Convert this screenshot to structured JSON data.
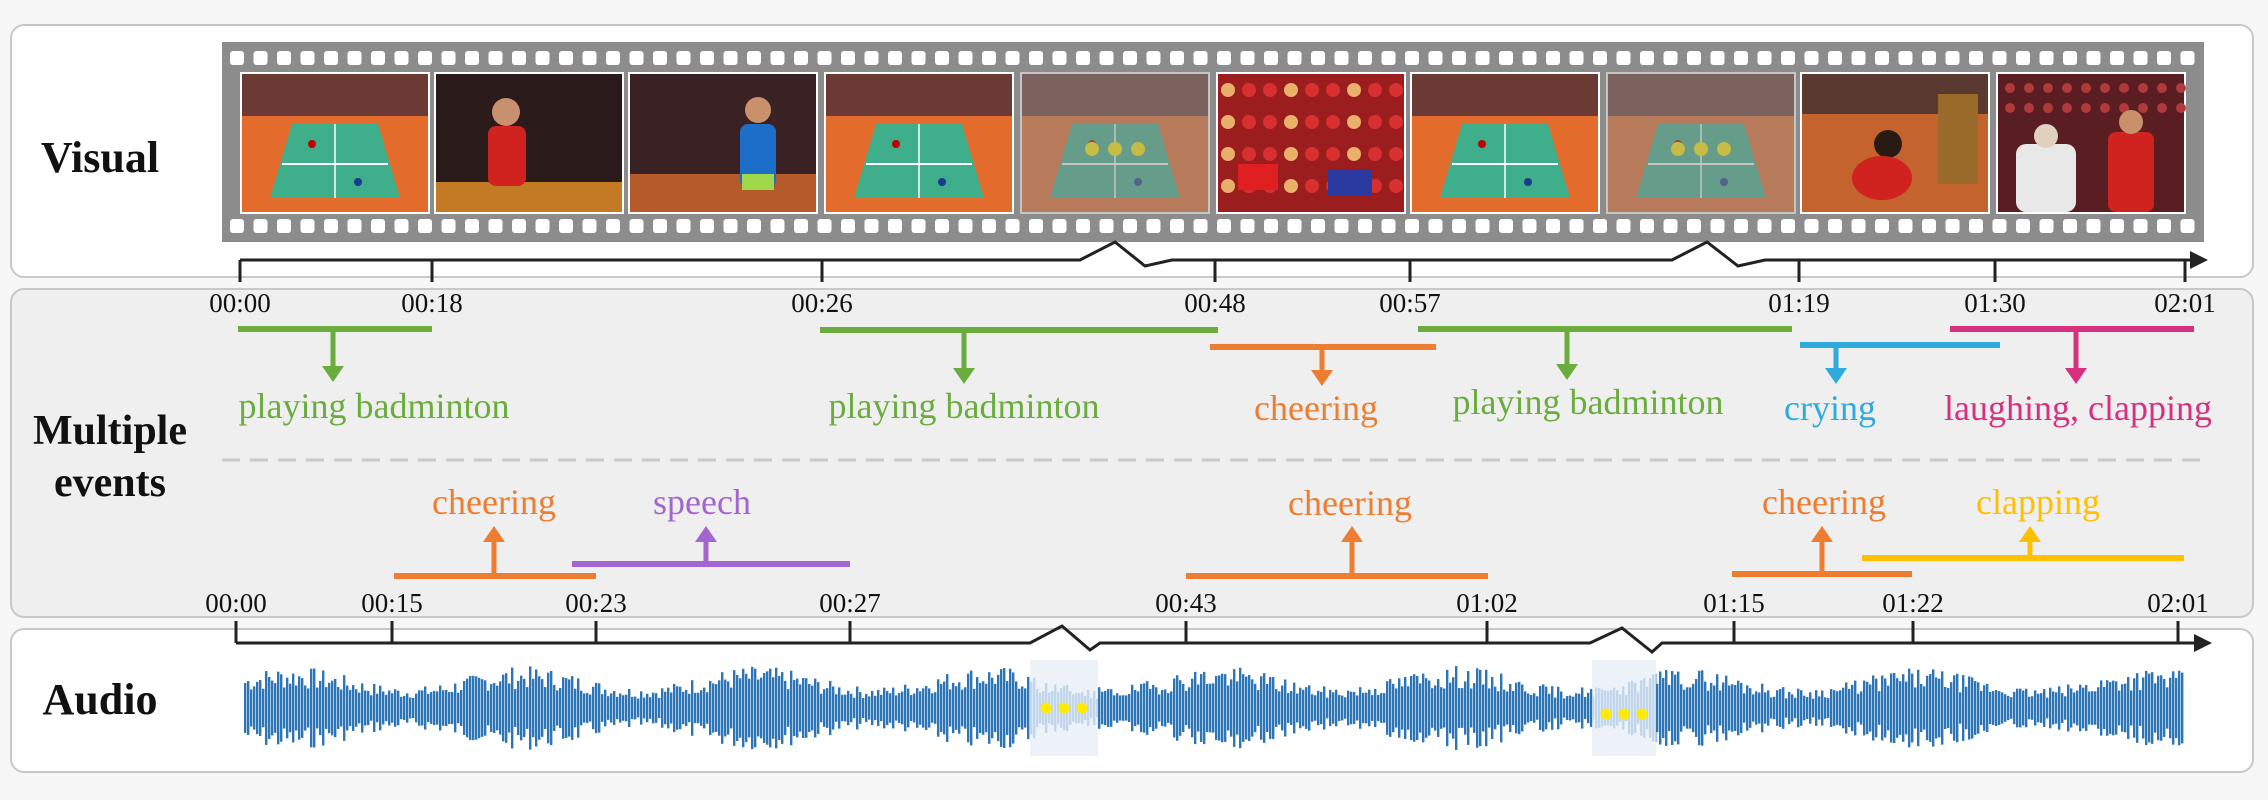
{
  "labels": {
    "visual": "Visual",
    "events_line1": "Multiple",
    "events_line2": "events",
    "audio": "Audio"
  },
  "colors": {
    "green": "#6aad3e",
    "orange": "#ed7d31",
    "purple": "#a366d1",
    "blue": "#2eaadc",
    "pink": "#d6317e",
    "yellow": "#ffc000",
    "wave": "#2e75b6",
    "wave_faded": "#a9c6e3",
    "film": "#8c8c8c"
  },
  "visual_ticks": [
    "00:00",
    "00:18",
    "00:26",
    "00:48",
    "00:57",
    "01:19",
    "01:30",
    "02:01"
  ],
  "audio_ticks": [
    "00:00",
    "00:15",
    "00:23",
    "00:27",
    "00:43",
    "01:02",
    "01:15",
    "01:22",
    "02:01"
  ],
  "visual_events": [
    {
      "label": "playing badminton",
      "color": "green"
    },
    {
      "label": "playing badminton",
      "color": "green"
    },
    {
      "label": "cheering",
      "color": "orange"
    },
    {
      "label": "playing badminton",
      "color": "green"
    },
    {
      "label": "crying",
      "color": "blue"
    },
    {
      "label": "laughing, clapping",
      "color": "pink"
    }
  ],
  "audio_events": [
    {
      "label": "cheering",
      "color": "orange"
    },
    {
      "label": "speech",
      "color": "purple"
    },
    {
      "label": "cheering",
      "color": "orange"
    },
    {
      "label": "cheering",
      "color": "orange"
    },
    {
      "label": "clapping",
      "color": "yellow"
    }
  ],
  "frames": [
    {
      "scene": "court",
      "faded": false
    },
    {
      "scene": "player-red",
      "faded": false
    },
    {
      "scene": "player-blue",
      "faded": false
    },
    {
      "scene": "court",
      "faded": false
    },
    {
      "scene": "court",
      "faded": true
    },
    {
      "scene": "crowd",
      "faded": false
    },
    {
      "scene": "court",
      "faded": false
    },
    {
      "scene": "court",
      "faded": true
    },
    {
      "scene": "player-crouch",
      "faded": false
    },
    {
      "scene": "interview",
      "faded": false
    }
  ]
}
